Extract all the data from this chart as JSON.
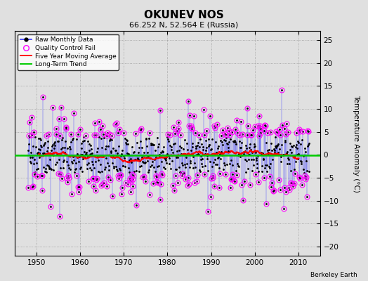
{
  "title": "OKUNEV NOS",
  "subtitle": "66.252 N, 52.564 E (Russia)",
  "credit": "Berkeley Earth",
  "ylabel": "Temperature Anomaly (°C)",
  "xlim": [
    1945,
    2015
  ],
  "ylim": [
    -22,
    27
  ],
  "yticks": [
    -20,
    -15,
    -10,
    -5,
    0,
    5,
    10,
    15,
    20,
    25
  ],
  "xticks": [
    1950,
    1960,
    1970,
    1980,
    1990,
    2000,
    2010
  ],
  "bg_color": "#e0e0e0",
  "raw_color": "#3333ff",
  "qc_color": "#ff00ff",
  "moving_avg_color": "#ff0000",
  "trend_color": "#00cc00",
  "seed": 17
}
